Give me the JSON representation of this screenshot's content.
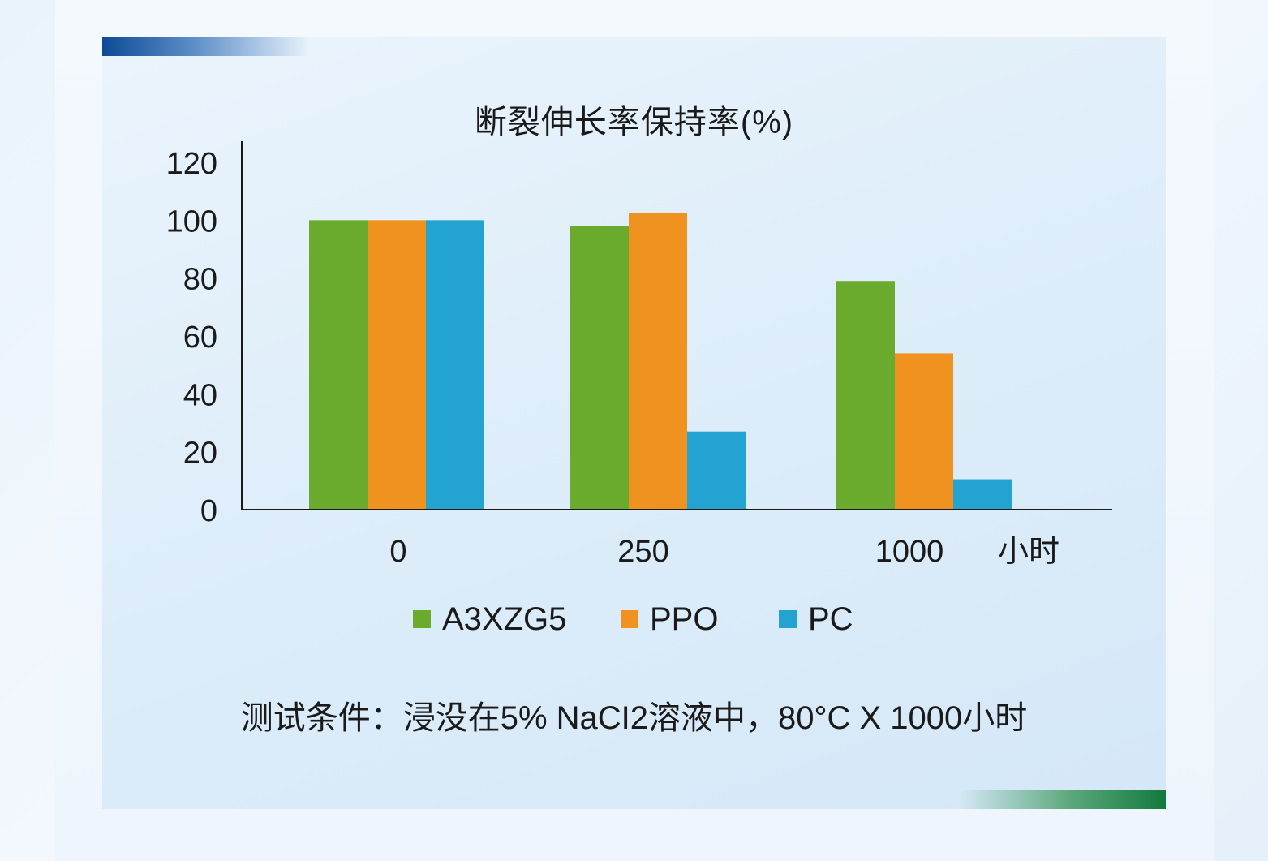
{
  "chart_data": {
    "type": "bar",
    "title": "断裂伸长率保持率(%)",
    "categories": [
      "0",
      "250",
      "1000"
    ],
    "x_unit": "小时",
    "ylim": [
      0,
      120
    ],
    "yticks": [
      "0",
      "20",
      "40",
      "60",
      "80",
      "100",
      "120"
    ],
    "series": [
      {
        "name": "A3XZG5",
        "color": "#6aaa2c",
        "values": [
          100,
          98,
          79
        ]
      },
      {
        "name": "PPO",
        "color": "#f09220",
        "values": [
          100,
          102.5,
          54
        ]
      },
      {
        "name": "PC",
        "color": "#23a3d1",
        "values": [
          100,
          27,
          10.5
        ]
      }
    ],
    "legend_position": "bottom",
    "grid": false
  },
  "footnote": "测试条件：浸没在5% NaCI2溶液中，80°C X 1000小时"
}
